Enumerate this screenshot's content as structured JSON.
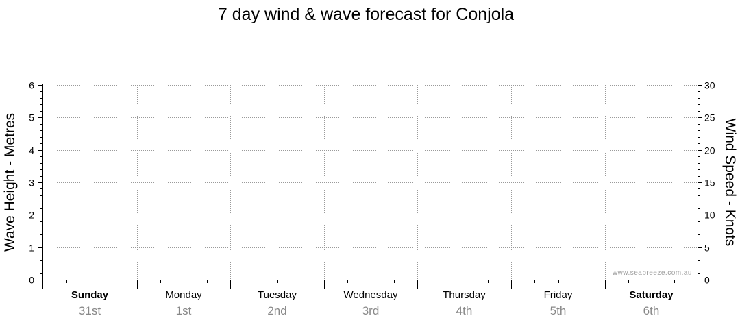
{
  "chart_data": {
    "type": "line",
    "title": "7 day wind & wave forecast for Conjola",
    "ylabel_left": "Wave Height - Metres",
    "ylabel_right": "Wind Speed - Knots",
    "ylim_left": [
      0,
      6
    ],
    "ylim_right": [
      0,
      30
    ],
    "yticks_left": [
      "0",
      "1",
      "2",
      "3",
      "4",
      "5",
      "6"
    ],
    "yticks_right": [
      "0",
      "5",
      "10",
      "15",
      "20",
      "25",
      "30"
    ],
    "grid": true,
    "days": [
      {
        "name": "Sunday",
        "date": "31st",
        "bold": true
      },
      {
        "name": "Monday",
        "date": "1st",
        "bold": false
      },
      {
        "name": "Tuesday",
        "date": "2nd",
        "bold": false
      },
      {
        "name": "Wednesday",
        "date": "3rd",
        "bold": false
      },
      {
        "name": "Thursday",
        "date": "4th",
        "bold": false
      },
      {
        "name": "Friday",
        "date": "5th",
        "bold": false
      },
      {
        "name": "Saturday",
        "date": "6th",
        "bold": true
      }
    ],
    "series": [],
    "watermark": "www.seabreeze.com.au"
  }
}
